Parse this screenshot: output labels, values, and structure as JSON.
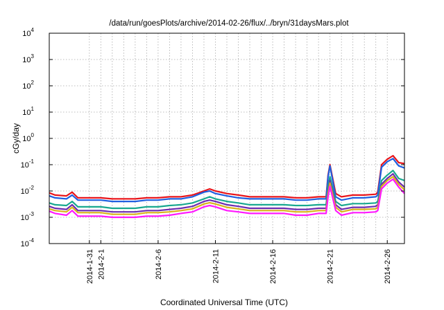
{
  "chart_data": {
    "type": "line",
    "title": "/data/run/goesPlots/archive/2014-02-26/flux/../bryn/31daysMars.plot",
    "xlabel": "Coordinated Universal Time (UTC)",
    "ylabel": "cGy/day",
    "yscale": "log",
    "ylim": [
      0.0001,
      10000
    ],
    "xlim": [
      "2014-01-27 12:00",
      "2014-02-27 12:00"
    ],
    "grid": true,
    "legend": "none",
    "y_ticks": [
      {
        "base": "10",
        "exp": "-4"
      },
      {
        "base": "10",
        "exp": "-3"
      },
      {
        "base": "10",
        "exp": "-2"
      },
      {
        "base": "10",
        "exp": "-1"
      },
      {
        "base": "10",
        "exp": "0"
      },
      {
        "base": "10",
        "exp": "1"
      },
      {
        "base": "10",
        "exp": "2"
      },
      {
        "base": "10",
        "exp": "3"
      },
      {
        "base": "10",
        "exp": "4"
      }
    ],
    "x_ticks": [
      {
        "date": "2014-01-31",
        "label": "2014-1-31"
      },
      {
        "date": "2014-02-01",
        "label": "2014-2-1"
      },
      {
        "date": "2014-02-06",
        "label": "2014-2-6"
      },
      {
        "date": "2014-02-11",
        "label": "2014-2-11"
      },
      {
        "date": "2014-02-16",
        "label": "2014-2-16"
      },
      {
        "date": "2014-02-21",
        "label": "2014-2-21"
      },
      {
        "date": "2014-02-26",
        "label": "2014-2-26"
      }
    ],
    "x_gridlines": [
      "2014-01-31",
      "2014-02-01",
      "2014-02-02",
      "2014-02-03",
      "2014-02-04",
      "2014-02-05",
      "2014-02-06",
      "2014-02-07",
      "2014-02-08",
      "2014-02-09",
      "2014-02-10",
      "2014-02-11",
      "2014-02-12",
      "2014-02-13",
      "2014-02-14",
      "2014-02-15",
      "2014-02-16",
      "2014-02-17",
      "2014-02-18",
      "2014-02-19",
      "2014-02-20",
      "2014-02-21",
      "2014-02-22",
      "2014-02-23",
      "2014-02-24",
      "2014-02-25",
      "2014-02-26"
    ],
    "x": [
      "2014-01-27 12:00",
      "2014-01-28",
      "2014-01-29",
      "2014-01-29 12:00",
      "2014-01-30",
      "2014-01-31",
      "2014-02-01",
      "2014-02-02",
      "2014-02-03",
      "2014-02-04",
      "2014-02-05",
      "2014-02-06",
      "2014-02-07",
      "2014-02-08",
      "2014-02-09",
      "2014-02-10",
      "2014-02-10 12:00",
      "2014-02-11",
      "2014-02-12",
      "2014-02-13",
      "2014-02-14",
      "2014-02-15",
      "2014-02-16",
      "2014-02-17",
      "2014-02-18",
      "2014-02-19",
      "2014-02-20",
      "2014-02-20 16:00",
      "2014-02-20 20:00",
      "2014-02-21",
      "2014-02-21 12:00",
      "2014-02-22",
      "2014-02-23",
      "2014-02-24",
      "2014-02-25",
      "2014-02-25 04:00",
      "2014-02-25 12:00",
      "2014-02-26",
      "2014-02-26 12:00",
      "2014-02-27",
      "2014-02-27 12:00"
    ],
    "series": [
      {
        "color": "#e8141a",
        "values": [
          0.0085,
          0.007,
          0.0065,
          0.009,
          0.0055,
          0.0055,
          0.0055,
          0.005,
          0.005,
          0.005,
          0.0055,
          0.0055,
          0.006,
          0.006,
          0.007,
          0.01,
          0.012,
          0.01,
          0.008,
          0.007,
          0.006,
          0.006,
          0.006,
          0.006,
          0.0055,
          0.0055,
          0.006,
          0.006,
          0.04,
          0.1,
          0.008,
          0.006,
          0.007,
          0.007,
          0.0075,
          0.009,
          0.1,
          0.16,
          0.22,
          0.12,
          0.11
        ]
      },
      {
        "color": "#1f5fe0",
        "values": [
          0.0065,
          0.0055,
          0.005,
          0.007,
          0.0045,
          0.0045,
          0.0045,
          0.004,
          0.004,
          0.004,
          0.0045,
          0.0045,
          0.005,
          0.005,
          0.006,
          0.009,
          0.01,
          0.008,
          0.0065,
          0.0055,
          0.005,
          0.005,
          0.005,
          0.005,
          0.0045,
          0.0045,
          0.005,
          0.005,
          0.035,
          0.09,
          0.006,
          0.0045,
          0.0055,
          0.0055,
          0.006,
          0.007,
          0.08,
          0.13,
          0.17,
          0.09,
          0.075
        ]
      },
      {
        "color": "#18a88f",
        "values": [
          0.0035,
          0.003,
          0.0028,
          0.004,
          0.0025,
          0.0025,
          0.0025,
          0.0022,
          0.0022,
          0.0022,
          0.0025,
          0.0025,
          0.0028,
          0.003,
          0.0035,
          0.005,
          0.006,
          0.005,
          0.004,
          0.0035,
          0.003,
          0.003,
          0.003,
          0.003,
          0.0028,
          0.0028,
          0.003,
          0.003,
          0.015,
          0.035,
          0.004,
          0.0028,
          0.0033,
          0.0033,
          0.0035,
          0.004,
          0.025,
          0.04,
          0.06,
          0.03,
          0.025
        ]
      },
      {
        "color": "#6d2db0",
        "values": [
          0.0026,
          0.0022,
          0.002,
          0.003,
          0.0018,
          0.0018,
          0.0018,
          0.0016,
          0.0016,
          0.0016,
          0.0018,
          0.0018,
          0.002,
          0.0022,
          0.0026,
          0.004,
          0.0045,
          0.004,
          0.003,
          0.0026,
          0.0022,
          0.0022,
          0.0022,
          0.0022,
          0.002,
          0.002,
          0.0022,
          0.0022,
          0.01,
          0.025,
          0.003,
          0.002,
          0.0024,
          0.0024,
          0.0026,
          0.003,
          0.018,
          0.03,
          0.045,
          0.022,
          0.014
        ]
      },
      {
        "color": "#d8b21a",
        "values": [
          0.0021,
          0.0018,
          0.0016,
          0.0024,
          0.0015,
          0.0015,
          0.0015,
          0.0013,
          0.0013,
          0.0013,
          0.0015,
          0.0015,
          0.0016,
          0.0018,
          0.0021,
          0.0032,
          0.0036,
          0.0032,
          0.0024,
          0.0021,
          0.0018,
          0.0018,
          0.0018,
          0.0018,
          0.0016,
          0.0016,
          0.0018,
          0.0018,
          0.008,
          0.02,
          0.0024,
          0.0016,
          0.002,
          0.002,
          0.0021,
          0.0024,
          0.015,
          0.025,
          0.035,
          0.018,
          0.011
        ]
      },
      {
        "color": "#ff18ff",
        "values": [
          0.0017,
          0.0014,
          0.0012,
          0.0018,
          0.0011,
          0.0011,
          0.0011,
          0.001,
          0.001,
          0.001,
          0.0011,
          0.0011,
          0.0012,
          0.0014,
          0.0016,
          0.0025,
          0.0028,
          0.0025,
          0.0018,
          0.0016,
          0.0014,
          0.0014,
          0.0014,
          0.0014,
          0.0012,
          0.0012,
          0.0014,
          0.0014,
          0.006,
          0.015,
          0.0018,
          0.0012,
          0.0015,
          0.0015,
          0.0016,
          0.0018,
          0.012,
          0.02,
          0.028,
          0.014,
          0.008
        ]
      }
    ]
  }
}
